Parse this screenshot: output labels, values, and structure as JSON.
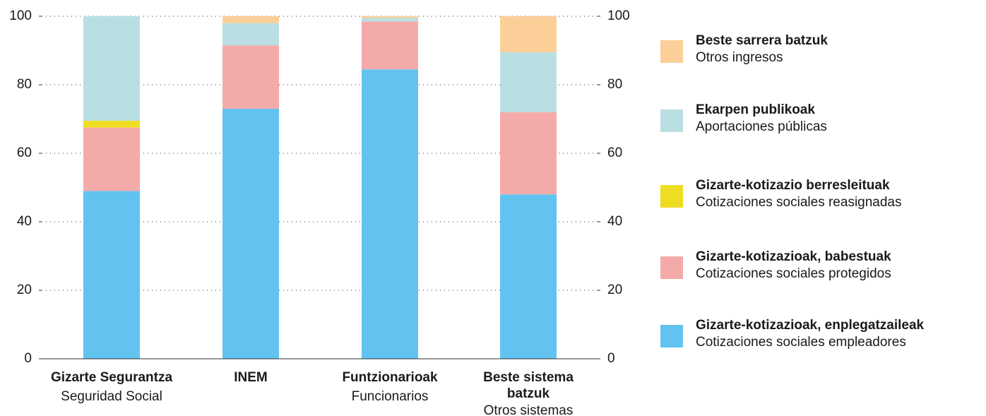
{
  "chart_data": {
    "type": "stacked_bar",
    "categories": [
      "Gizarte Segurantza",
      "INEM",
      "Funtzionarioak",
      "Beste sistema batzuk"
    ],
    "category_subtitles": [
      "Seguridad Social",
      null,
      "Funcionarios",
      "Otros sistemas"
    ],
    "series": [
      {
        "name": "Gizarte-kotizazioak, enplegatzaileak",
        "subtitle": "Cotizaciones sociales empleadores",
        "color": "#62c3f0",
        "values": [
          49,
          73,
          84.5,
          48
        ]
      },
      {
        "name": "Gizarte-kotizazioak, babestuak",
        "subtitle": "Cotizaciones sociales protegidos",
        "color": "#f5aaaa",
        "values": [
          18.5,
          18.5,
          14,
          24
        ]
      },
      {
        "name": "Gizarte-kotizazio berresleituak",
        "subtitle": "Cotizaciones sociales reasignadas",
        "color": "#eedd22",
        "values": [
          2,
          0,
          0,
          0
        ]
      },
      {
        "name": "Ekarpen publikoak",
        "subtitle": "Aportaciones públicas",
        "color": "#b9dfe3",
        "values": [
          30.5,
          6.5,
          1,
          17.5
        ]
      },
      {
        "name": "Beste sarrera batzuk",
        "subtitle": "Otros ingresos",
        "color": "#fccf99",
        "values": [
          0,
          2,
          0.5,
          10.5
        ]
      }
    ],
    "ylim": [
      0,
      100
    ],
    "yticks": [
      0,
      20,
      40,
      60,
      80,
      100
    ],
    "grid": true
  }
}
